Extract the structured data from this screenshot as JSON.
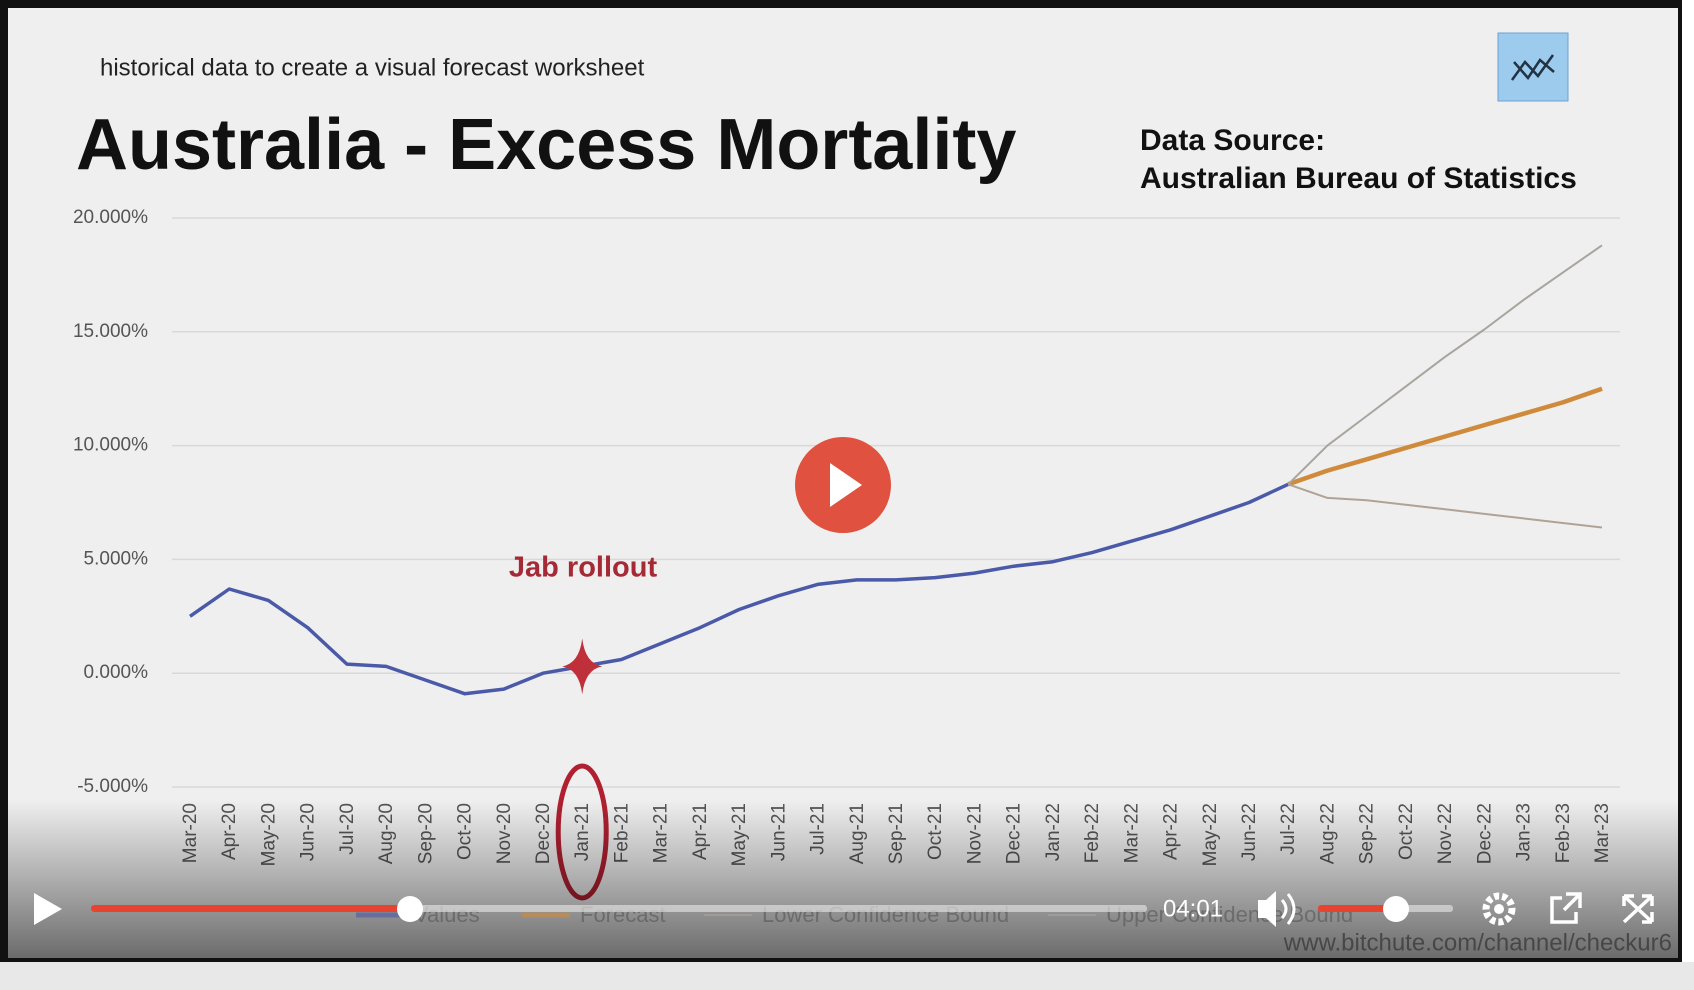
{
  "header": {
    "caption": "historical data to create a visual forecast worksheet",
    "source_label": "Data Source:",
    "source": "Australian Bureau of Statistics",
    "watermark": "www.bitchute.com/channel/checkur6"
  },
  "player": {
    "time": "04:01"
  },
  "chart_data": {
    "type": "line",
    "title": "Australia - Excess Mortality",
    "annotations": [
      "Jab rollout"
    ],
    "categories": [
      "Mar-20",
      "Apr-20",
      "May-20",
      "Jun-20",
      "Jul-20",
      "Aug-20",
      "Sep-20",
      "Oct-20",
      "Nov-20",
      "Dec-20",
      "Jan-21",
      "Feb-21",
      "Mar-21",
      "Apr-21",
      "May-21",
      "Jun-21",
      "Jul-21",
      "Aug-21",
      "Sep-21",
      "Oct-21",
      "Nov-21",
      "Dec-21",
      "Jan-22",
      "Feb-22",
      "Mar-22",
      "Apr-22",
      "May-22",
      "Jun-22",
      "Jul-22",
      "Aug-22",
      "Sep-22",
      "Oct-22",
      "Nov-22",
      "Dec-22",
      "Jan-23",
      "Feb-23",
      "Mar-23"
    ],
    "series": [
      {
        "name": "Values",
        "color": "#4a5aa8",
        "values": [
          2.5,
          3.7,
          3.2,
          2.0,
          0.4,
          0.3,
          -0.3,
          -0.9,
          -0.7,
          0.0,
          0.3,
          0.6,
          1.3,
          2.0,
          2.8,
          3.4,
          3.9,
          4.1,
          4.1,
          4.2,
          4.4,
          4.7,
          4.9,
          5.3,
          5.8,
          6.3,
          6.9,
          7.5,
          8.3,
          null,
          null,
          null,
          null,
          null,
          null,
          null,
          null
        ]
      },
      {
        "name": "Forecast",
        "color": "#d08a3c",
        "values": [
          null,
          null,
          null,
          null,
          null,
          null,
          null,
          null,
          null,
          null,
          null,
          null,
          null,
          null,
          null,
          null,
          null,
          null,
          null,
          null,
          null,
          null,
          null,
          null,
          null,
          null,
          null,
          null,
          8.3,
          8.9,
          9.4,
          9.9,
          10.4,
          10.9,
          11.4,
          11.9,
          12.5
        ]
      },
      {
        "name": "Lower Confidence Bound",
        "color": "#b0a396",
        "values": [
          null,
          null,
          null,
          null,
          null,
          null,
          null,
          null,
          null,
          null,
          null,
          null,
          null,
          null,
          null,
          null,
          null,
          null,
          null,
          null,
          null,
          null,
          null,
          null,
          null,
          null,
          null,
          null,
          8.3,
          7.7,
          7.6,
          7.4,
          7.2,
          7.0,
          6.8,
          6.6,
          6.4
        ]
      },
      {
        "name": "Upper Confidence Bound",
        "color": "#a8a49e",
        "values": [
          null,
          null,
          null,
          null,
          null,
          null,
          null,
          null,
          null,
          null,
          null,
          null,
          null,
          null,
          null,
          null,
          null,
          null,
          null,
          null,
          null,
          null,
          null,
          null,
          null,
          null,
          null,
          null,
          8.3,
          10.0,
          11.3,
          12.6,
          13.9,
          15.1,
          16.4,
          17.6,
          18.8
        ]
      }
    ],
    "ylim": [
      -5,
      20
    ],
    "yticks": [
      {
        "value": -5,
        "label": "-5.000%"
      },
      {
        "value": 0,
        "label": "0.000%"
      },
      {
        "value": 5,
        "label": "5.000%"
      },
      {
        "value": 10,
        "label": "10.000%"
      },
      {
        "value": 15,
        "label": "15.000%"
      },
      {
        "value": 20,
        "label": "20.000%"
      }
    ],
    "grid": true
  }
}
